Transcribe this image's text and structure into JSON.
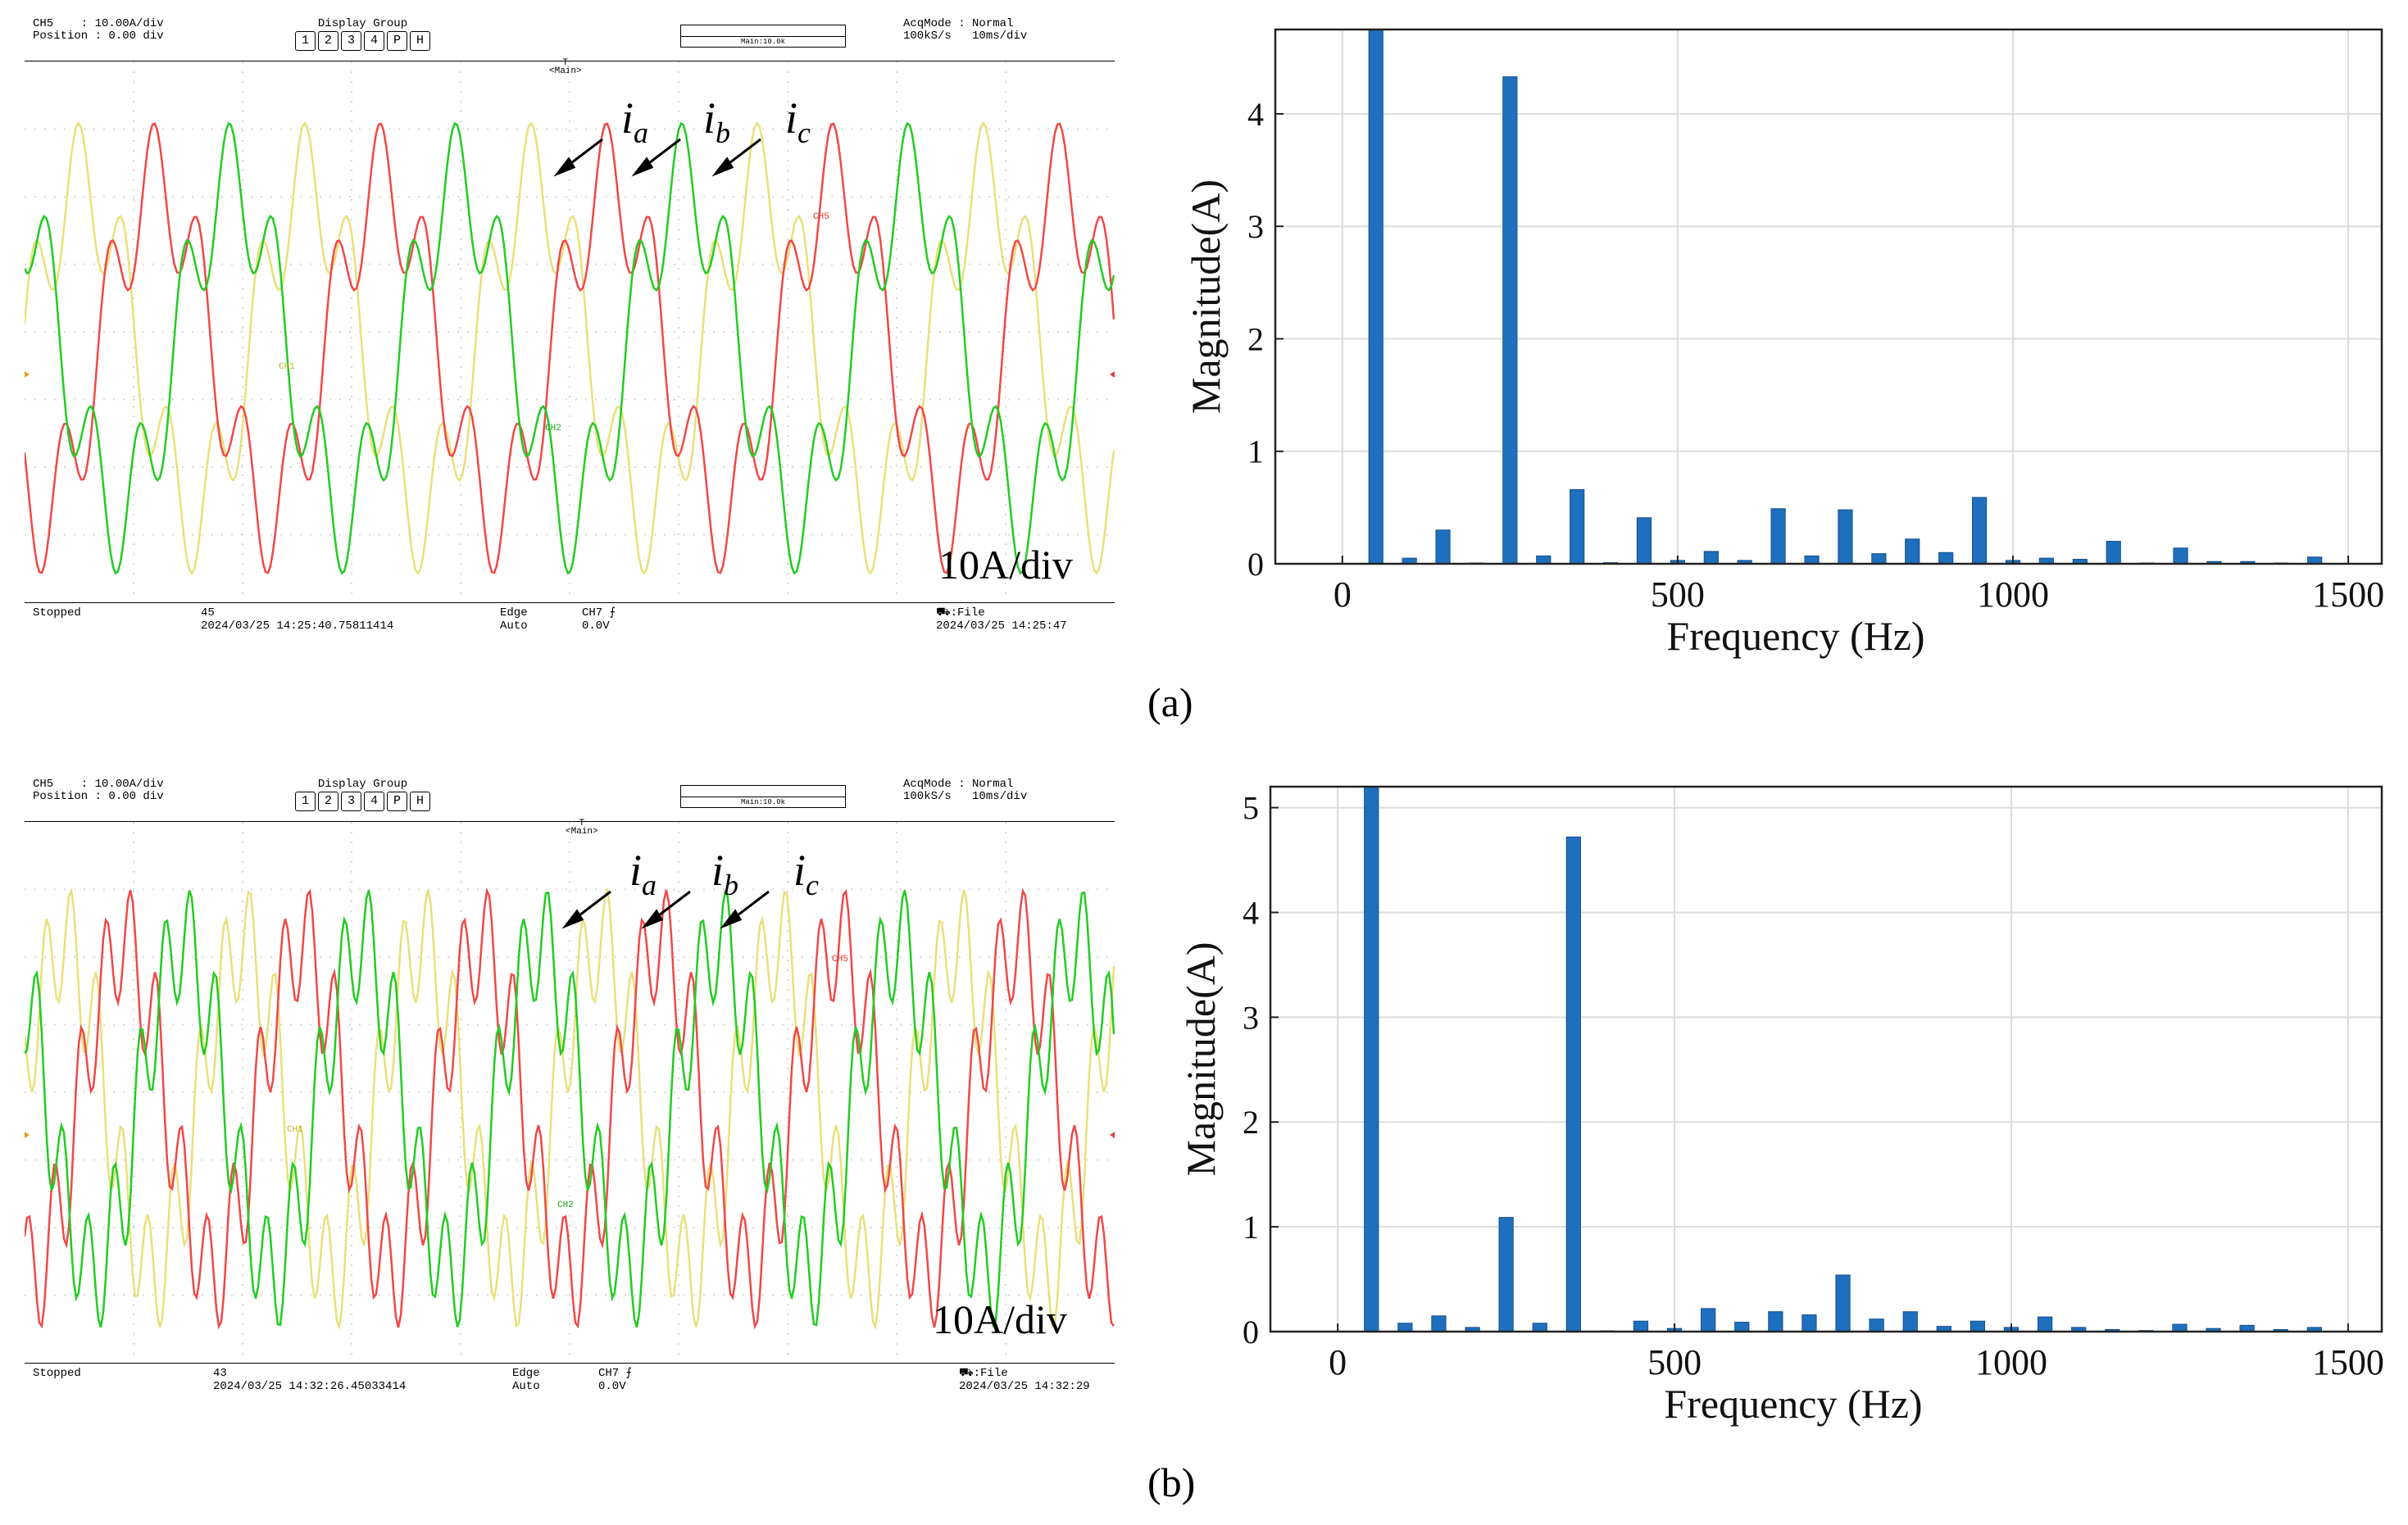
{
  "colors": {
    "phase_a": "#e8e07a",
    "phase_b": "#f04848",
    "phase_c": "#22cc22",
    "bar": "#1f6fbf"
  },
  "captions": [
    "(a)",
    "(b)"
  ],
  "scope_common": {
    "ch_label": "CH5    : 10.00A/div",
    "pos_label": "Position : 0.00 div",
    "display_group": "Display Group",
    "buttons": [
      "1",
      "2",
      "3",
      "4",
      "P",
      "H"
    ],
    "acq_mode": "AcqMode : Normal",
    "rate": "100kS/s   10ms/div",
    "zoom_text": "Main:10.0k",
    "trigger_marker": "T",
    "main_marker": "<Main>",
    "stopped": "Stopped",
    "edge": "Edge",
    "auto": "Auto",
    "ch7": "CH7 ⨍",
    "level": "0.0V",
    "file": "⛟:File",
    "vdiv": "10A/div",
    "phase_names": {
      "a": "a",
      "b": "b",
      "c": "c"
    },
    "phase_letter": "i",
    "ch_tags": {
      "a": "CH1",
      "b": "CH5",
      "c": "CH2"
    }
  },
  "scopes": [
    {
      "count": "45",
      "timestamp": "2024/03/25 14:25:40.75811414",
      "file_time": "2024/03/25 14:25:47"
    },
    {
      "count": "43",
      "timestamp": "2024/03/25 14:32:26.45033414",
      "file_time": "2024/03/25 14:32:29"
    }
  ],
  "chart_data": [
    {
      "type": "bar",
      "xlabel": "Frequency (Hz)",
      "ylabel": "Magnitude(A)",
      "xlim": [
        -100,
        1550
      ],
      "ylim": [
        0,
        4.75
      ],
      "xticks": [
        0,
        500,
        1000,
        1500
      ],
      "yticks": [
        0,
        1,
        2,
        3,
        4
      ],
      "grid": true,
      "x": [
        50,
        100,
        150,
        200,
        250,
        300,
        350,
        400,
        450,
        500,
        550,
        600,
        650,
        700,
        750,
        800,
        850,
        900,
        950,
        1000,
        1050,
        1100,
        1150,
        1200,
        1250,
        1300,
        1350,
        1400,
        1450
      ],
      "values": [
        4.75,
        0.05,
        0.3,
        0.0,
        4.33,
        0.07,
        0.66,
        0.01,
        0.41,
        0.03,
        0.11,
        0.03,
        0.49,
        0.07,
        0.48,
        0.09,
        0.22,
        0.1,
        0.59,
        0.03,
        0.05,
        0.04,
        0.2,
        0.0,
        0.14,
        0.02,
        0.02,
        0.0,
        0.06
      ]
    },
    {
      "type": "bar",
      "xlabel": "Frequency (Hz)",
      "ylabel": "Magnitude(A)",
      "xlim": [
        -100,
        1550
      ],
      "ylim": [
        0,
        5.2
      ],
      "xticks": [
        0,
        500,
        1000,
        1500
      ],
      "yticks": [
        0,
        1,
        2,
        3,
        4,
        5
      ],
      "grid": true,
      "x": [
        50,
        100,
        150,
        200,
        250,
        300,
        350,
        400,
        450,
        500,
        550,
        600,
        650,
        700,
        750,
        800,
        850,
        900,
        950,
        1000,
        1050,
        1100,
        1150,
        1200,
        1250,
        1300,
        1350,
        1400,
        1450
      ],
      "values": [
        5.2,
        0.08,
        0.15,
        0.04,
        1.09,
        0.08,
        4.72,
        0.0,
        0.1,
        0.03,
        0.22,
        0.09,
        0.19,
        0.16,
        0.54,
        0.12,
        0.19,
        0.05,
        0.1,
        0.04,
        0.14,
        0.04,
        0.02,
        0.01,
        0.07,
        0.03,
        0.06,
        0.02,
        0.04
      ]
    }
  ]
}
